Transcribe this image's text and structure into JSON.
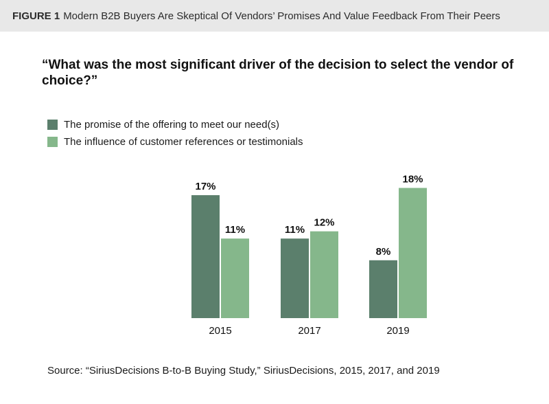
{
  "figure": {
    "label": "FIGURE 1",
    "title": "Modern B2B Buyers Are Skeptical Of Vendors’ Promises And Value Feedback From Their Peers"
  },
  "question": "“What was the most significant driver of the decision to select the vendor of choice?”",
  "source": "Source: “SiriusDecisions B-to-B Buying Study,” SiriusDecisions, 2015, 2017, and 2019",
  "colors": {
    "series_dark": "#5b7f6c",
    "series_light": "#85b78b"
  },
  "chart_data": {
    "type": "bar",
    "categories": [
      "2015",
      "2017",
      "2019"
    ],
    "series": [
      {
        "name": "The promise of the offering to meet our need(s)",
        "values": [
          17,
          11,
          8
        ]
      },
      {
        "name": "The influence of customer references or testimonials",
        "values": [
          11,
          12,
          18
        ]
      }
    ],
    "value_suffix": "%",
    "ylim": [
      0,
      19
    ],
    "legend_position": "top-left",
    "grid": false
  }
}
